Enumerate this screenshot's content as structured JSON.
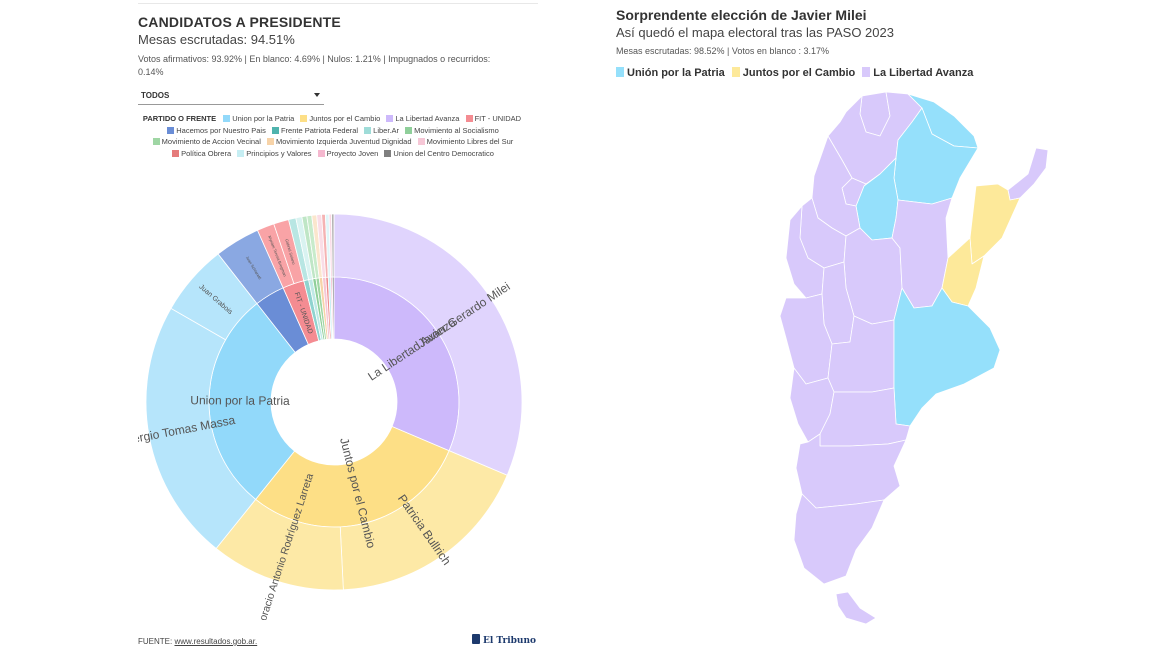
{
  "left": {
    "title": "CANDIDATOS A PRESIDENTE",
    "subtitle": "Mesas escrutadas: 94.51%",
    "votes_line1": "Votos afirmativos: 93.92% | En blanco: 4.69% | Nulos: 1.21% | Impugnados o recurridos:",
    "votes_line2": "0.14%",
    "filter_value": "TODOS",
    "legend_header": "PARTIDO O FRENTE",
    "footer_label": "FUENTE:",
    "footer_link": "www.resultados.gob.ar.",
    "logo_text": "El Tribuno"
  },
  "colors": {
    "lla": "#e0d4fd",
    "lla_inner": "#cdb9fb",
    "jxc": "#fde9a6",
    "jxc_inner": "#fddf86",
    "uxp": "#b6e5fb",
    "uxp_inner": "#92d9fa",
    "fit": "#f9a3a6",
    "fit_inner": "#f48c92",
    "hnp": "#8aa8e2",
    "hnp_inner": "#6a8dd6",
    "libre_sur": "#f6c7d6",
    "mapa_uxp": "#95e0fb",
    "mapa_jxc": "#fde99a",
    "mapa_lla": "#d8c9fb"
  },
  "chart_data": [
    {
      "type": "sunburst",
      "parties": [
        {
          "name": "La Libertad Avanza",
          "label": "La Libertad Avanza",
          "value": 29.86,
          "color": "#cdb9fb",
          "candidates": [
            {
              "name": "Javier Gerardo Milei",
              "value": 29.86,
              "color": "#e0d4fd"
            }
          ]
        },
        {
          "name": "Juntos por el Cambio",
          "label": "Juntos por el Cambio",
          "value": 28.0,
          "color": "#fddf86",
          "candidates": [
            {
              "name": "Patricia Bullrich",
              "value": 16.98,
              "color": "#fde9a6"
            },
            {
              "name": "Horacio Antonio Rodríguez Larreta",
              "value": 11.02,
              "color": "#fde9a6"
            }
          ]
        },
        {
          "name": "Union por la Patria",
          "label": "Union por la Patria",
          "value": 27.27,
          "color": "#92d9fa",
          "candidates": [
            {
              "name": "Sergio Tomas Massa",
              "value": 21.43,
              "color": "#b6e5fb"
            },
            {
              "name": "Juan Grabois",
              "value": 5.84,
              "color": "#b6e5fb"
            }
          ]
        },
        {
          "name": "Hacemos por Nuestro Pais",
          "label": "",
          "value": 3.71,
          "color": "#6a8dd6",
          "candidates": [
            {
              "name": "Juan Schiaretti",
              "value": 3.71,
              "color": "#8aa8e2"
            }
          ]
        },
        {
          "name": "FIT - UNIDAD",
          "label": "FIT - UNIDAD",
          "value": 2.65,
          "color": "#f48c92",
          "candidates": [
            {
              "name": "Myriam Teresa Bregman",
              "value": 1.41,
              "color": "#f9a3a6"
            },
            {
              "name": "Gabriel Solano",
              "value": 1.24,
              "color": "#f9a3a6"
            }
          ]
        },
        {
          "name": "Frente Patriota Federal",
          "label": "",
          "value": 0.6,
          "color": "#8fd3cf",
          "candidates": [
            {
              "name": "",
              "value": 0.6,
              "color": "#b8e6e3"
            }
          ]
        },
        {
          "name": "Liber.Ar",
          "label": "",
          "value": 0.5,
          "color": "#bfe9e6",
          "candidates": [
            {
              "name": "",
              "value": 0.5,
              "color": "#d9f3f1"
            }
          ]
        },
        {
          "name": "Movimiento al Socialismo",
          "label": "",
          "value": 0.4,
          "color": "#8fcf9a",
          "candidates": [
            {
              "name": "",
              "value": 0.4,
              "color": "#bfe6c6"
            }
          ]
        },
        {
          "name": "Movimiento de Accion Vecinal",
          "label": "",
          "value": 0.4,
          "color": "#9fd6a4",
          "candidates": [
            {
              "name": "",
              "value": 0.4,
              "color": "#c8ebcb"
            }
          ]
        },
        {
          "name": "Movimiento Izquierda Juventud Dignidad",
          "label": "",
          "value": 0.4,
          "color": "#f7d3a8",
          "candidates": [
            {
              "name": "",
              "value": 0.4,
              "color": "#fbe6cd"
            }
          ]
        },
        {
          "name": "Movimiento Libres del Sur",
          "label": "",
          "value": 0.4,
          "color": "#f6c7d6",
          "candidates": [
            {
              "name": "",
              "value": 0.4,
              "color": "#fadde6"
            }
          ]
        },
        {
          "name": "Politica Obrera",
          "label": "",
          "value": 0.3,
          "color": "#ee8a8a",
          "candidates": [
            {
              "name": "",
              "value": 0.3,
              "color": "#f5b3b3"
            }
          ]
        },
        {
          "name": "Principios y Valores",
          "label": "",
          "value": 0.3,
          "color": "#c6eef3",
          "candidates": [
            {
              "name": "",
              "value": 0.3,
              "color": "#e0f6f9"
            }
          ]
        },
        {
          "name": "Proyecto Joven",
          "label": "",
          "value": 0.2,
          "color": "#f5b8cf",
          "candidates": [
            {
              "name": "",
              "value": 0.2,
              "color": "#fad6e3"
            }
          ]
        },
        {
          "name": "Union del Centro Democratico",
          "label": "",
          "value": 0.2,
          "color": "#7f7f7f",
          "candidates": [
            {
              "name": "",
              "value": 0.2,
              "color": "#b3b3b3"
            }
          ]
        }
      ],
      "legend": [
        {
          "name": "Union por la Patria",
          "color": "#92d9fa"
        },
        {
          "name": "Juntos por el Cambio",
          "color": "#fddf86"
        },
        {
          "name": "La Libertad Avanza",
          "color": "#cdb9fb"
        },
        {
          "name": "FIT - UNIDAD",
          "color": "#f48c92"
        },
        {
          "name": "Hacemos por Nuestro Pais",
          "color": "#6a8dd6"
        },
        {
          "name": "Frente Patriota Federal",
          "color": "#4fb3ad"
        },
        {
          "name": "Liber.Ar",
          "color": "#9fdcd8"
        },
        {
          "name": "Movimiento al Socialismo",
          "color": "#8fcf9a"
        },
        {
          "name": "Movimiento de Accion Vecinal",
          "color": "#9fd6a4"
        },
        {
          "name": "Movimiento Izquierda Juventud Dignidad",
          "color": "#f7d3a8"
        },
        {
          "name": "Movimiento Libres del Sur",
          "color": "#f6c7d6"
        },
        {
          "name": "Política Obrera",
          "color": "#e57b7b"
        },
        {
          "name": "Principios y Valores",
          "color": "#c6eef3"
        },
        {
          "name": "Proyecto Joven",
          "color": "#f5b8cf"
        },
        {
          "name": "Union del Centro Democratico",
          "color": "#7f7f7f"
        }
      ]
    },
    {
      "type": "choropleth_map",
      "title": "Sorprendente elección de Javier Milei",
      "subtitle": "Así quedó el mapa electoral tras las PASO 2023",
      "meta": "Mesas escrutadas: 98.52% | Votos en blanco : 3.17%",
      "legend": [
        {
          "name": "Unión por la Patria",
          "color": "#95e0fb"
        },
        {
          "name": "Juntos por el Cambio",
          "color": "#fde99a"
        },
        {
          "name": "La Libertad Avanza",
          "color": "#d8c9fb"
        }
      ],
      "winners": {
        "Formosa": "Unión por la Patria",
        "Chaco": "Unión por la Patria",
        "Santiago del Estero": "Unión por la Patria",
        "Buenos Aires": "Unión por la Patria",
        "Corrientes": "Juntos por el Cambio",
        "Entre Ríos": "Juntos por el Cambio",
        "Jujuy": "La Libertad Avanza",
        "Salta": "La Libertad Avanza",
        "Tucumán": "La Libertad Avanza",
        "Catamarca": "La Libertad Avanza",
        "La Rioja": "La Libertad Avanza",
        "San Juan": "La Libertad Avanza",
        "Mendoza": "La Libertad Avanza",
        "San Luis": "La Libertad Avanza",
        "Córdoba": "La Libertad Avanza",
        "Santa Fe": "La Libertad Avanza",
        "Misiones": "La Libertad Avanza",
        "La Pampa": "La Libertad Avanza",
        "Neuquén": "La Libertad Avanza",
        "Río Negro": "La Libertad Avanza",
        "Chubut": "La Libertad Avanza",
        "Santa Cruz": "La Libertad Avanza",
        "Tierra del Fuego": "La Libertad Avanza"
      }
    }
  ]
}
